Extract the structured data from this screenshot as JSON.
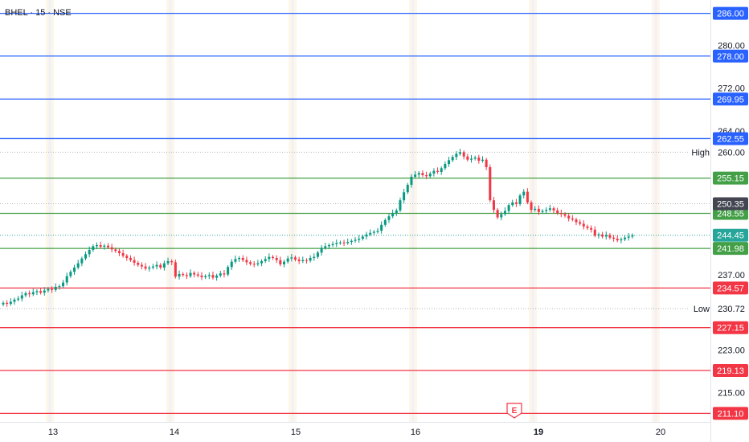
{
  "title": "BHEL · 15 · NSE",
  "earnings_marker": "E",
  "colors": {
    "up": "#089981",
    "down": "#f23645",
    "blue_level": "#2962ff",
    "green_level": "#43a047",
    "red_level": "#f23645",
    "last_price": "#26a69a",
    "prev_close": "#434651"
  },
  "chart_data": {
    "type": "candlestick",
    "title": "BHEL · 15 · NSE",
    "ylim": [
      209.5,
      288.5
    ],
    "y_ticks": [
      "280.00",
      "272.00",
      "264.00",
      "260.00",
      "237.00",
      "230.72",
      "223.00",
      "215.00"
    ],
    "x_ticks": [
      {
        "label": "13",
        "bold": false
      },
      {
        "label": "14",
        "bold": false
      },
      {
        "label": "15",
        "bold": false
      },
      {
        "label": "16",
        "bold": false
      },
      {
        "label": "19",
        "bold": true
      },
      {
        "label": "20",
        "bold": false
      }
    ],
    "levels": [
      {
        "value": 286.0,
        "label": "286.00",
        "group": "blue"
      },
      {
        "value": 278.0,
        "label": "278.00",
        "group": "blue"
      },
      {
        "value": 269.95,
        "label": "269.95",
        "group": "blue"
      },
      {
        "value": 262.55,
        "label": "262.55",
        "group": "blue"
      },
      {
        "value": 255.15,
        "label": "255.15",
        "group": "green"
      },
      {
        "value": 248.55,
        "label": "248.55",
        "group": "green"
      },
      {
        "value": 241.98,
        "label": "241.98",
        "group": "green"
      },
      {
        "value": 234.57,
        "label": "234.57",
        "group": "red"
      },
      {
        "value": 227.15,
        "label": "227.15",
        "group": "red"
      },
      {
        "value": 219.13,
        "label": "219.13",
        "group": "red"
      },
      {
        "value": 211.1,
        "label": "211.10",
        "group": "red"
      }
    ],
    "high": {
      "label": "High",
      "value": 260.0,
      "text": "260.00"
    },
    "low": {
      "label": "Low",
      "value": 230.72,
      "text": "230.72"
    },
    "prev_close": {
      "value": 250.35,
      "text": "250.35"
    },
    "last_price": {
      "value": 244.45,
      "text": "244.45"
    },
    "series": [
      {
        "name": "",
        "closes": [
          231.8,
          231.6,
          232.0,
          232.4,
          232.6,
          233.2,
          233.6,
          233.4,
          233.8,
          234.0,
          233.7,
          234.1,
          234.4,
          234.2,
          234.8,
          234.9,
          235.6,
          236.8,
          237.6,
          238.4,
          239.2,
          240.1,
          240.9,
          241.7,
          242.4,
          242.6,
          242.3,
          242.5,
          242.2,
          241.8,
          241.5,
          241.1,
          240.6,
          240.2,
          239.8,
          239.3,
          238.9,
          238.6,
          238.2,
          238.4,
          238.6,
          238.9,
          238.4,
          239.2,
          239.6,
          239.4,
          236.7,
          237.2,
          237.0,
          236.8,
          237.4,
          237.1,
          236.9,
          236.6,
          236.8,
          237.0,
          236.5,
          236.9,
          237.3,
          237.1,
          238.5,
          239.5,
          240.0,
          240.2,
          239.8,
          239.4,
          239.1,
          239.0,
          239.2,
          239.6,
          240.0,
          240.4,
          240.2,
          239.8,
          239.0,
          239.5,
          240.1,
          240.3,
          239.9,
          239.6,
          239.8,
          239.7,
          240.2,
          240.4,
          241.2,
          242.1,
          242.4,
          242.6,
          242.8,
          243.0,
          243.1,
          243.0,
          243.2,
          243.4,
          243.6,
          243.8,
          244.2,
          244.6,
          244.9,
          245.1,
          245.3,
          246.4,
          247.3,
          248.0,
          248.6,
          249.1,
          251.0,
          252.5,
          253.9,
          255.4,
          255.8,
          256.1,
          255.7,
          255.5,
          256.0,
          256.5,
          256.3,
          257.0,
          257.8,
          258.5,
          259.1,
          259.7,
          260.0,
          259.2,
          258.6,
          258.8,
          259.0,
          258.4,
          258.6,
          257.2,
          251.0,
          249.2,
          247.8,
          248.4,
          249.0,
          250.1,
          250.6,
          250.3,
          251.9,
          252.6,
          250.6,
          249.2,
          249.4,
          248.8,
          249.0,
          249.2,
          249.5,
          249.1,
          248.6,
          248.4,
          248.1,
          247.6,
          247.4,
          246.9,
          246.6,
          246.1,
          245.8,
          245.5,
          244.4,
          244.6,
          244.2,
          244.5,
          244.0,
          243.8,
          243.5,
          243.7,
          244.0,
          244.2,
          244.45
        ]
      }
    ]
  }
}
